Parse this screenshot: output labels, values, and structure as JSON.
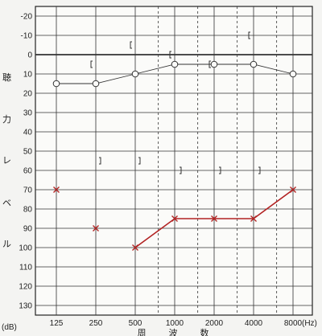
{
  "chart_data": {
    "type": "line",
    "x_tick_labels": [
      "125",
      "250",
      "500",
      "1000",
      "2000",
      "4000",
      "8000"
    ],
    "x_unit": "(Hz)",
    "x_axis_label_chars": [
      "周",
      "波",
      "数"
    ],
    "y_unit": "(dB)",
    "y_axis_label_chars": [
      "聴",
      "力",
      "レ",
      "ベ",
      "ル"
    ],
    "ylim": [
      -25,
      135
    ],
    "y_ticks": [
      -20,
      -10,
      0,
      10,
      20,
      30,
      40,
      50,
      60,
      70,
      80,
      90,
      100,
      110,
      120,
      130
    ],
    "grid": true,
    "series": [
      {
        "marker": "circle",
        "color": "#333333",
        "connected": true,
        "points": [
          {
            "x": 125,
            "y": 15
          },
          {
            "x": 250,
            "y": 15
          },
          {
            "x": 500,
            "y": 10
          },
          {
            "x": 1000,
            "y": 5
          },
          {
            "x": 2000,
            "y": 5
          },
          {
            "x": 4000,
            "y": 5
          },
          {
            "x": 8000,
            "y": 10
          }
        ]
      },
      {
        "marker": "cross",
        "color": "#b22222",
        "connected": true,
        "points": [
          {
            "x": 500,
            "y": 100
          },
          {
            "x": 1000,
            "y": 85
          },
          {
            "x": 2000,
            "y": 85
          },
          {
            "x": 4000,
            "y": 85
          },
          {
            "x": 8000,
            "y": 70
          }
        ]
      },
      {
        "marker": "cross",
        "color": "#b22222",
        "connected": false,
        "points": [
          {
            "x": 125,
            "y": 70
          },
          {
            "x": 250,
            "y": 90
          }
        ]
      },
      {
        "marker": "left-bracket",
        "color": "#333333",
        "connected": false,
        "points": [
          {
            "x": 250,
            "y": 5
          },
          {
            "x": 500,
            "y": -5
          },
          {
            "x": 1000,
            "y": 0
          },
          {
            "x": 2000,
            "y": 5
          },
          {
            "x": 4000,
            "y": -10
          }
        ]
      },
      {
        "marker": "right-bracket",
        "color": "#333333",
        "connected": false,
        "points": [
          {
            "x": 250,
            "y": 55
          },
          {
            "x": 500,
            "y": 55
          }
        ]
      },
      {
        "marker": "left-bracket-right-bracket",
        "color": "#333333",
        "connected": false,
        "points": [
          {
            "x": 1000,
            "y": 60
          },
          {
            "x": 2000,
            "y": 60
          },
          {
            "x": 4000,
            "y": 60
          }
        ]
      }
    ]
  }
}
